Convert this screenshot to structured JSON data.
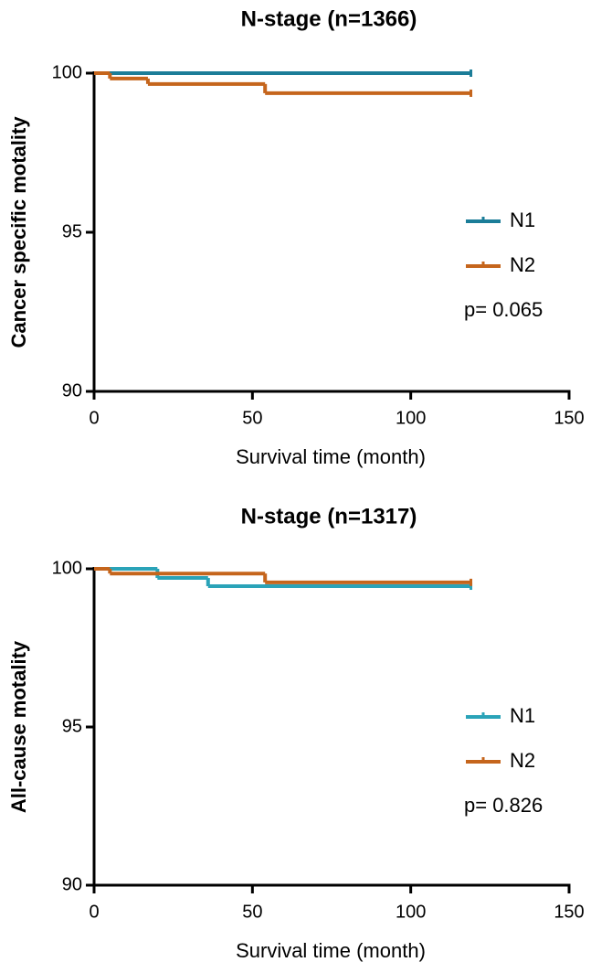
{
  "chart_data": [
    {
      "type": "step",
      "title": "N-stage (n=1366)",
      "x_label": "Survival time (month)",
      "y_label": "Cancer specific motality",
      "xlim": [
        0,
        150
      ],
      "xticks": [
        0,
        50,
        100,
        150
      ],
      "ylim": [
        90,
        100
      ],
      "yticks": [
        90,
        95,
        100
      ],
      "annotation": "p= 0.065",
      "series": [
        {
          "name": "N1",
          "color": "#1b7d98",
          "x": [
            0,
            119
          ],
          "values": [
            100,
            100
          ]
        },
        {
          "name": "N2",
          "color": "#c5651c",
          "x": [
            0,
            5,
            17,
            54,
            119
          ],
          "values": [
            100,
            99.83,
            99.66,
            99.37,
            99.37
          ]
        }
      ]
    },
    {
      "type": "step",
      "title": "N-stage (n=1317)",
      "x_label": "Survival time (month)",
      "y_label": "All-cause motality",
      "xlim": [
        0,
        150
      ],
      "xticks": [
        0,
        50,
        100,
        150
      ],
      "ylim": [
        90,
        100
      ],
      "yticks": [
        90,
        95,
        100
      ],
      "annotation": "p= 0.826",
      "series": [
        {
          "name": "N1",
          "color": "#2aa3b8",
          "x": [
            0,
            20,
            36,
            119
          ],
          "values": [
            100,
            99.71,
            99.45,
            99.45
          ]
        },
        {
          "name": "N2",
          "color": "#c5651c",
          "x": [
            0,
            5,
            54,
            119
          ],
          "values": [
            100,
            99.85,
            99.57,
            99.57
          ]
        }
      ]
    }
  ]
}
